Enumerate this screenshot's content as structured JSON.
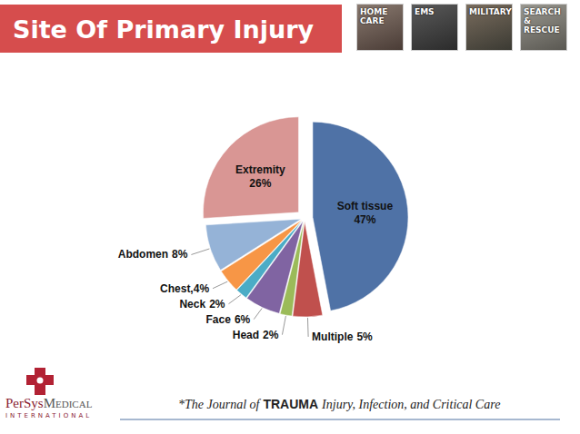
{
  "header": {
    "photos": [
      "HOME CARE",
      "EMS",
      "MILITARY",
      "SEARCH & RESCUE"
    ]
  },
  "chart_data": {
    "type": "pie",
    "title": "Site Of Primary Injury",
    "categories": [
      "Soft tissue",
      "Multiple",
      "Head",
      "Face",
      "Neck",
      "Chest,",
      "Abdomen",
      "Extremity"
    ],
    "values": [
      47,
      5,
      2,
      6,
      2,
      4,
      8,
      26
    ],
    "value_labels": [
      "47%",
      "5%",
      "2%",
      "6%",
      "2%",
      "4%",
      "8%",
      "26%"
    ],
    "colors": [
      "#4f72a6",
      "#c0504d",
      "#9bbb59",
      "#8064a2",
      "#4bacc6",
      "#f79646",
      "#95b3d7",
      "#d99694"
    ],
    "data_labels": true
  },
  "footer": {
    "logo": {
      "name_1": "PerSys",
      "name_2": "Medical",
      "tagline": "INTERNATIONAL"
    },
    "source": {
      "prefix": "*The Journal of",
      "emphasis": "TRAUMA",
      "suffix": "Injury, Infection, and Critical Care"
    }
  }
}
